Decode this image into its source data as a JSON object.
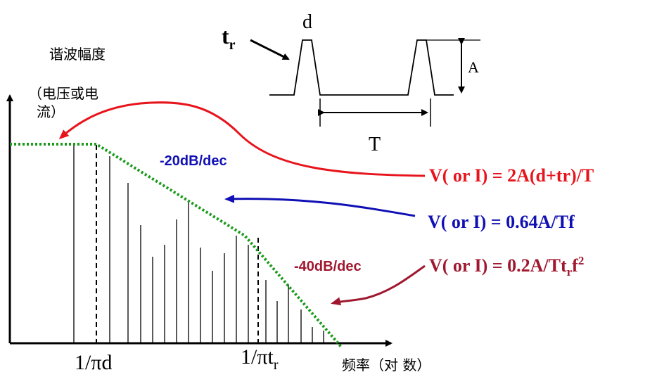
{
  "spectrum": {
    "y_axis_label_line1": "谐波幅度",
    "y_axis_label_line2": "（电压或电",
    "y_axis_label_line3": "流）",
    "x_axis_label": "频率（对 数）",
    "x_tick_1": "1/πd",
    "x_tick_2_main": "1/πt",
    "x_tick_2_sub": "r"
  },
  "slopes": {
    "slope1": "-20dB/dec",
    "slope2": "-40dB/dec"
  },
  "waveform": {
    "rise_label_main": "t",
    "rise_label_sub": "r",
    "width_label": "d",
    "amplitude_label": "A",
    "period_label": "T"
  },
  "formulas": {
    "f1": "V( or I) = 2A(d+tr)/T",
    "f2": "V( or I) = 0.64A/Tf",
    "f3_main": "V( or I) = 0.2A/Tt",
    "f3_sub": "r",
    "f3_tail": "f",
    "f3_sup": "2"
  },
  "colors": {
    "red": "#e8141c",
    "blue": "#1010b4",
    "maroon": "#a01830",
    "green": "#1a9a1a",
    "black": "#000000"
  }
}
